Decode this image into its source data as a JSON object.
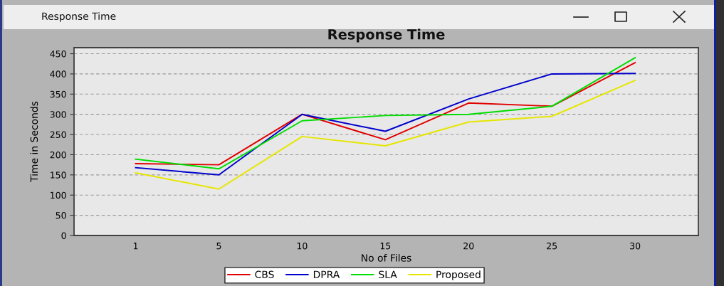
{
  "chart_data": {
    "type": "line",
    "title": "Response Time",
    "xlabel": "No of Files",
    "ylabel": "Time in Seconds",
    "categories": [
      "1",
      "5",
      "10",
      "15",
      "20",
      "25",
      "30"
    ],
    "series": [
      {
        "name": "CBS",
        "color": "#e00000",
        "values": [
          178,
          175,
          300,
          237,
          328,
          320,
          428
        ]
      },
      {
        "name": "DPRA",
        "color": "#0000cc",
        "values": [
          168,
          150,
          300,
          258,
          338,
          400,
          401
        ]
      },
      {
        "name": "SLA",
        "color": "#00dd00",
        "values": [
          189,
          165,
          284,
          297,
          300,
          320,
          440
        ]
      },
      {
        "name": "Proposed",
        "color": "#e6e600",
        "values": [
          155,
          115,
          245,
          222,
          281,
          295,
          384
        ]
      }
    ],
    "ylim": [
      0,
      465
    ],
    "yticks": [
      0,
      50,
      100,
      150,
      200,
      250,
      300,
      350,
      400,
      450
    ],
    "grid": "y",
    "legend": "bottom",
    "line_style": "solid",
    "annotations": [
      "Response Time"
    ]
  }
}
